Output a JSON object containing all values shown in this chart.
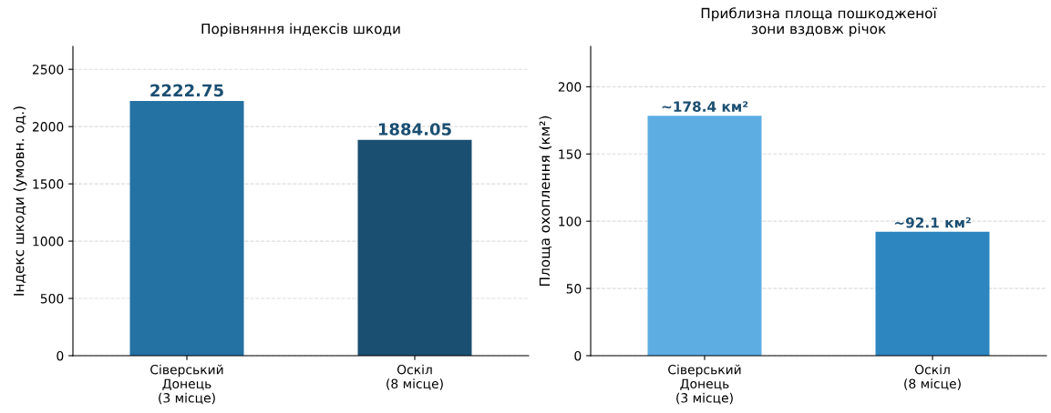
{
  "chart_data": [
    {
      "type": "bar",
      "title": "Порівняння індексів шкоди",
      "ylabel": "Індекс шкоди (умовн. од.)",
      "categories": [
        "Сіверський\nДонець\n(3 місце)",
        "Оскіл\n(8 місце)"
      ],
      "values": [
        2222.75,
        1884.05
      ],
      "colors": [
        "#2471a3",
        "#1b4f72"
      ],
      "ylim": [
        0,
        2700
      ],
      "yticks": [
        0,
        500,
        1000,
        1500,
        2000,
        2500
      ],
      "grid": "y",
      "data_labels": true
    },
    {
      "type": "bar",
      "title": "Приблизна площа пошкодженої\nзони вздовж річок",
      "ylabel": "Площа охоплення (км²)",
      "categories": [
        "Сіверський\nДонець\n(3 місце)",
        "Оскіл\n(8 місце)"
      ],
      "values": [
        178.4,
        92.1
      ],
      "colors": [
        "#5dade2",
        "#2e86c1"
      ],
      "value_labels": [
        "~178.4 км²",
        "~92.1 км²"
      ],
      "ylim": [
        0,
        230
      ],
      "yticks": [
        0,
        50,
        100,
        150,
        200
      ],
      "grid": "y"
    }
  ]
}
